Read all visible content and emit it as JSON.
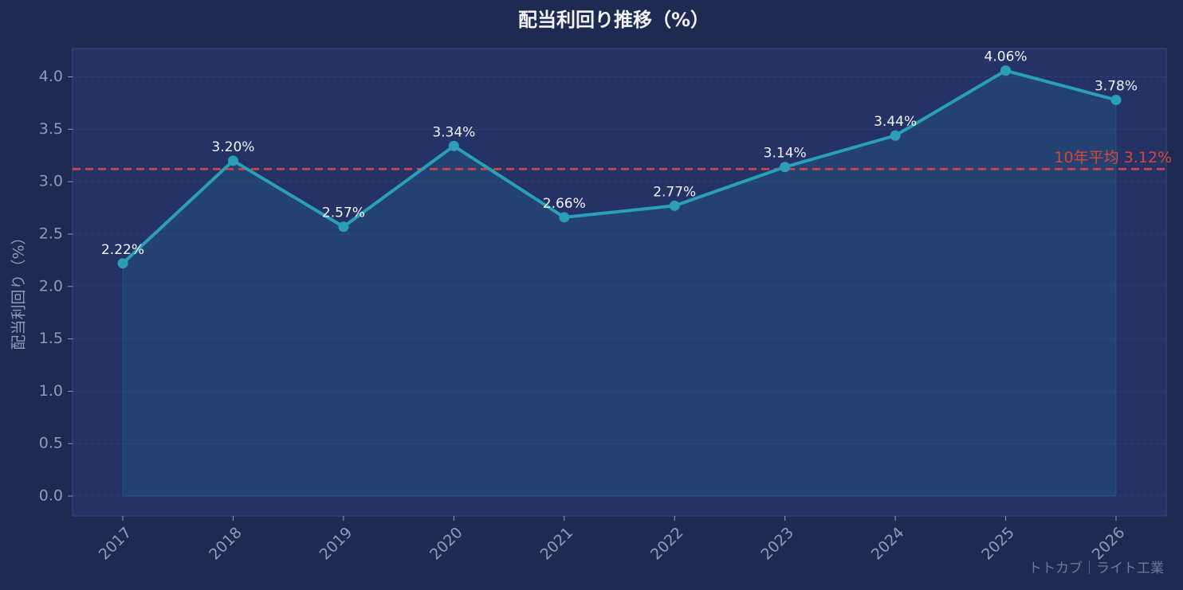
{
  "chart_data": {
    "type": "line",
    "title": "配当利回り推移（%）",
    "y_label": "配当利回り（%）",
    "categories": [
      "2017",
      "2018",
      "2019",
      "2020",
      "2021",
      "2022",
      "2023",
      "2024",
      "2025",
      "2026"
    ],
    "values": [
      2.22,
      3.2,
      2.57,
      3.34,
      2.66,
      2.77,
      3.14,
      3.44,
      4.06,
      3.78
    ],
    "value_labels": [
      "2.22%",
      "3.20%",
      "2.57%",
      "3.34%",
      "2.66%",
      "2.77%",
      "3.14%",
      "3.44%",
      "4.06%",
      "3.78%"
    ],
    "color": "#2b9fb8",
    "ylim": [
      -0.19,
      4.27
    ],
    "yticks": [
      {
        "value": 0,
        "label": "0.0"
      },
      0.5,
      {
        "value": 1,
        "label": "1.0"
      },
      1.5,
      {
        "value": 2,
        "label": "2.0"
      },
      2.5,
      {
        "value": 3,
        "label": "3.0"
      },
      3.5,
      {
        "value": 4,
        "label": "4.0"
      }
    ],
    "grid": true,
    "reference_line": {
      "value": 3.12,
      "label": "10年平均 3.12%",
      "color": "#d9463a"
    },
    "watermark": "トトカブ｜ライト工業"
  }
}
